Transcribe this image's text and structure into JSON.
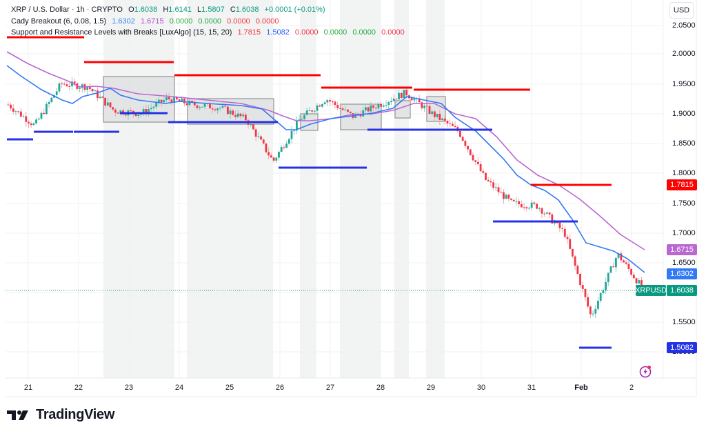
{
  "header": {
    "symbol_line": "XRP / U.S. Dollar · 1h · CRYPTO",
    "ohlc": {
      "o_label": "O",
      "o": "1.6038",
      "h_label": "H",
      "h": "1.6141",
      "l_label": "L",
      "l": "1.5807",
      "c_label": "C",
      "c": "1.6038",
      "change": "+0.0001 (+0.01%)"
    },
    "indicator1": {
      "name": "Cady Breakout (6, 0.08, 1.5)",
      "values": [
        "1.6302",
        "1.6715",
        "0.0000",
        "0.0000",
        "0.0000",
        "0.0000"
      ]
    },
    "indicator2": {
      "name": "Support and Resistance Levels with Breaks [LuxAlgo] (15, 15, 20)",
      "values": [
        "1.7815",
        "1.5082",
        "0.0000",
        "0.0000",
        "0.0000",
        "0.0000"
      ]
    }
  },
  "currency_button": "USD",
  "price_axis": {
    "ticks": [
      "2.0500",
      "2.0000",
      "1.9500",
      "1.9000",
      "1.8500",
      "1.8000",
      "1.7500",
      "1.7000",
      "1.6500",
      "1.5500",
      "1.5000"
    ],
    "badges": {
      "resistance": {
        "value": "1.7815",
        "color": "#ff0000"
      },
      "ema_slow": {
        "value": "1.6715",
        "color": "#b967d1"
      },
      "ema_fast": {
        "value": "1.6302",
        "color": "#3179f5"
      },
      "last": {
        "symbol": "XRPUSD",
        "value": "1.6038",
        "color": "#089981"
      },
      "support": {
        "value": "1.5082",
        "color": "#2431e6"
      }
    }
  },
  "time_axis": {
    "labels": [
      "21",
      "22",
      "23",
      "24",
      "25",
      "26",
      "27",
      "28",
      "29",
      "30",
      "31",
      "Feb",
      "2"
    ]
  },
  "brand": "TradingView",
  "chart_data": {
    "type": "candlestick",
    "title": "XRP / U.S. Dollar · 1h · CRYPTO",
    "xlabel": "",
    "ylabel": "USD",
    "ylim": [
      1.49,
      2.07
    ],
    "x_ticks": [
      "21",
      "22",
      "23",
      "24",
      "25",
      "26",
      "27",
      "28",
      "29",
      "30",
      "31",
      "Feb",
      "2"
    ],
    "approx_close_path": [
      {
        "x": "21",
        "close": 1.915
      },
      {
        "x": "21.5",
        "close": 1.88
      },
      {
        "x": "22",
        "close": 1.95
      },
      {
        "x": "22.5",
        "close": 1.945
      },
      {
        "x": "23",
        "close": 1.905
      },
      {
        "x": "23.5",
        "close": 1.9
      },
      {
        "x": "24",
        "close": 1.925
      },
      {
        "x": "24.5",
        "close": 1.915
      },
      {
        "x": "25",
        "close": 1.91
      },
      {
        "x": "25.5",
        "close": 1.89
      },
      {
        "x": "26",
        "close": 1.82
      },
      {
        "x": "26.5",
        "close": 1.89
      },
      {
        "x": "27",
        "close": 1.925
      },
      {
        "x": "27.5",
        "close": 1.895
      },
      {
        "x": "28",
        "close": 1.915
      },
      {
        "x": "28.5",
        "close": 1.935
      },
      {
        "x": "29",
        "close": 1.9
      },
      {
        "x": "29.5",
        "close": 1.87
      },
      {
        "x": "30",
        "close": 1.79
      },
      {
        "x": "30.5",
        "close": 1.75
      },
      {
        "x": "31",
        "close": 1.745
      },
      {
        "x": "31.5",
        "close": 1.7
      },
      {
        "x": "Feb",
        "close": 1.56
      },
      {
        "x": "Feb.5",
        "close": 1.665
      },
      {
        "x": "2",
        "close": 1.6038
      }
    ],
    "last": {
      "open": 1.6038,
      "high": 1.6141,
      "low": 1.5807,
      "close": 1.6038,
      "change": 0.0001,
      "change_pct": 0.01
    },
    "series": [
      {
        "name": "Cady Breakout fast (blue)",
        "last": 1.6302,
        "color": "#3179f5"
      },
      {
        "name": "Cady Breakout slow (purple)",
        "last": 1.6715,
        "color": "#b967d1"
      }
    ],
    "levels": {
      "resistance": [
        2.028,
        1.988,
        1.965,
        1.945,
        1.94,
        1.782
      ],
      "support": [
        1.858,
        1.87,
        1.902,
        1.886,
        1.873,
        1.809,
        1.72,
        1.508
      ],
      "current_resistance": 1.7815,
      "current_support": 1.5082
    }
  }
}
